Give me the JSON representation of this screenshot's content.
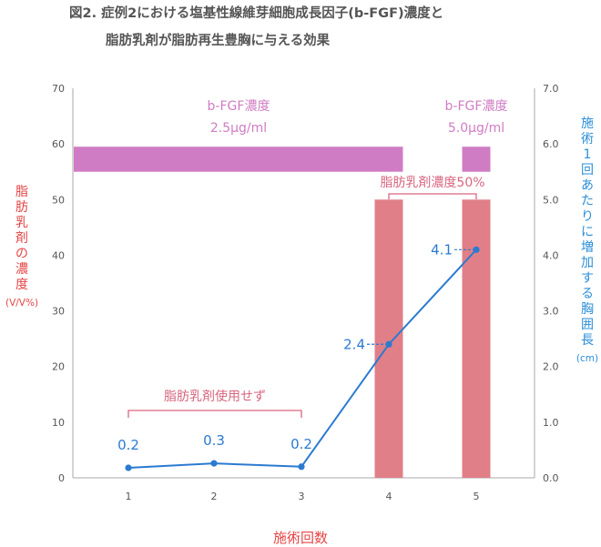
{
  "title": {
    "line1": "図2. 症例2における塩基性線維芽細胞成長因子(b-FGF)濃度と",
    "line2": "脂肪乳剤が脂肪再生豊胸に与える効果"
  },
  "colors": {
    "bfgf_bar": "#d07cc4",
    "emulsion_bar": "#e07f88",
    "line": "#2b7ad0",
    "left_axis_label": "#e64545",
    "right_axis_label": "#2b8fd8",
    "bracket": "#d9667f"
  },
  "chart_data": {
    "type": "bar",
    "categories": [
      "1",
      "2",
      "3",
      "4",
      "5"
    ],
    "xlabel": "施術回数",
    "ylabel_left": {
      "chars": [
        "脂",
        "肪",
        "乳",
        "剤",
        "の",
        "濃",
        "度"
      ],
      "unit": "(V/V%)"
    },
    "ylabel_right": {
      "chars": [
        "施",
        "術",
        "1",
        "回",
        "あ",
        "た",
        "り",
        "に",
        "増",
        "加",
        "す",
        "る",
        "胸",
        "囲",
        "長"
      ],
      "unit": "(cm)"
    },
    "ylim_left": [
      0,
      70
    ],
    "yticks_left": [
      "0",
      "10",
      "20",
      "30",
      "40",
      "50",
      "60",
      "70"
    ],
    "ylim_right": [
      0.0,
      7.0
    ],
    "yticks_right": [
      "0.0",
      "1.0",
      "2.0",
      "3.0",
      "4.0",
      "5.0",
      "6.0",
      "7.0"
    ],
    "grid": false,
    "series": [
      {
        "name": "脂肪乳剤濃度",
        "axis": "left",
        "kind": "bar",
        "values": [
          0,
          0,
          0,
          50,
          50
        ]
      },
      {
        "name": "施術1回あたりに増加する胸囲長",
        "axis": "right",
        "kind": "line",
        "values": [
          0.18,
          0.26,
          0.2,
          2.4,
          4.1
        ],
        "labels": [
          "0.2",
          "0.3",
          "0.2",
          "2.4",
          "4.1"
        ]
      }
    ],
    "bfgf_bands": [
      {
        "from_category": "1",
        "to_category": "4",
        "line1": "b-FGF濃度",
        "line2": "2.5μg/ml",
        "y_range_left": [
          55,
          59.5
        ]
      },
      {
        "from_category": "5",
        "to_category": "5",
        "line1": "b-FGF濃度",
        "line2": "5.0μg/ml",
        "y_range_left": [
          55,
          59.5
        ]
      }
    ],
    "annotations": [
      {
        "text": "脂肪乳剤使用せず",
        "from_category": "1",
        "to_category": "3"
      },
      {
        "text": "脂肪乳剤濃度50%",
        "from_category": "4",
        "to_category": "5"
      }
    ]
  }
}
